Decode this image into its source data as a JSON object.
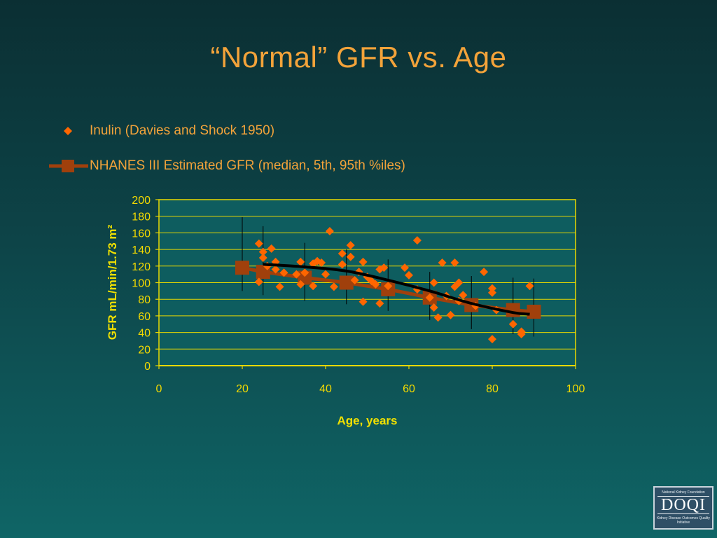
{
  "slide": {
    "title": "“Normal” GFR vs. Age"
  },
  "legend": {
    "inulin": "Inulin (Davies and Shock 1950)",
    "nhanes": "NHANES III Estimated GFR (median, 5th, 95th %iles)"
  },
  "logo": {
    "top_text": "National Kidney Foundation",
    "main_text": "DOQI",
    "bottom_text": "Kidney Disease Outcomes Quality Initiative"
  },
  "colors": {
    "title": "#f3a33a",
    "axis_text": "#f0e000",
    "plot_bg": "#0e5d5f",
    "grid": "#e8d800",
    "inulin": "#ff6600",
    "nhanes": "#a0400c",
    "trend": "#000000"
  },
  "chart_data": {
    "type": "scatter",
    "xlabel": "Age, years",
    "ylabel": "GFR mL/min/1.73 m²",
    "xlim": [
      0,
      100
    ],
    "ylim": [
      0,
      200
    ],
    "xticks": [
      0,
      20,
      40,
      60,
      80,
      100
    ],
    "yticks": [
      0,
      20,
      40,
      60,
      80,
      100,
      120,
      140,
      160,
      180,
      200
    ],
    "grid": "horizontal",
    "series": [
      {
        "name": "Inulin (Davies and Shock 1950)",
        "marker": "diamond",
        "points": [
          [
            24,
            147
          ],
          [
            24,
            101
          ],
          [
            25,
            137
          ],
          [
            25,
            130
          ],
          [
            26,
            120
          ],
          [
            27,
            141
          ],
          [
            28,
            125
          ],
          [
            28,
            116
          ],
          [
            29,
            95
          ],
          [
            30,
            112
          ],
          [
            33,
            110
          ],
          [
            34,
            125
          ],
          [
            34,
            98
          ],
          [
            35,
            112
          ],
          [
            37,
            96
          ],
          [
            37,
            123
          ],
          [
            38,
            126
          ],
          [
            39,
            124
          ],
          [
            40,
            110
          ],
          [
            41,
            162
          ],
          [
            42,
            95
          ],
          [
            44,
            135
          ],
          [
            44,
            122
          ],
          [
            46,
            145
          ],
          [
            46,
            131
          ],
          [
            47,
            103
          ],
          [
            48,
            113
          ],
          [
            49,
            125
          ],
          [
            49,
            77
          ],
          [
            50,
            107
          ],
          [
            51,
            102
          ],
          [
            52,
            98
          ],
          [
            53,
            116
          ],
          [
            53,
            75
          ],
          [
            54,
            118
          ],
          [
            55,
            96
          ],
          [
            59,
            118
          ],
          [
            60,
            109
          ],
          [
            62,
            151
          ],
          [
            62,
            92
          ],
          [
            65,
            82
          ],
          [
            66,
            100
          ],
          [
            66,
            70
          ],
          [
            67,
            58
          ],
          [
            68,
            124
          ],
          [
            69,
            84
          ],
          [
            70,
            61
          ],
          [
            71,
            124
          ],
          [
            71,
            95
          ],
          [
            72,
            100
          ],
          [
            72,
            78
          ],
          [
            73,
            85
          ],
          [
            76,
            72
          ],
          [
            78,
            113
          ],
          [
            80,
            93
          ],
          [
            80,
            88
          ],
          [
            80,
            32
          ],
          [
            81,
            67
          ],
          [
            85,
            50
          ],
          [
            87,
            41
          ],
          [
            87,
            38
          ],
          [
            89,
            96
          ]
        ]
      },
      {
        "name": "NHANES III Estimated GFR (median, 5th, 95th %iles)",
        "marker": "square",
        "points": [
          {
            "x": 20,
            "y": 118,
            "low": 90,
            "high": 179
          },
          {
            "x": 25,
            "y": 113,
            "low": 85,
            "high": 168
          },
          {
            "x": 35,
            "y": 106,
            "low": 78,
            "high": 148
          },
          {
            "x": 45,
            "y": 100,
            "low": 74,
            "high": 140
          },
          {
            "x": 55,
            "y": 92,
            "low": 66,
            "high": 128
          },
          {
            "x": 65,
            "y": 82,
            "low": 55,
            "high": 113
          },
          {
            "x": 75,
            "y": 73,
            "low": 44,
            "high": 108
          },
          {
            "x": 85,
            "y": 67,
            "low": 38,
            "high": 106
          },
          {
            "x": 90,
            "y": 65,
            "low": 35,
            "high": 105
          }
        ]
      },
      {
        "name": "",
        "marker": "none",
        "line": "smooth",
        "points": [
          [
            25,
            122
          ],
          [
            35,
            119
          ],
          [
            45,
            114
          ],
          [
            55,
            103
          ],
          [
            65,
            90
          ],
          [
            75,
            75
          ],
          [
            85,
            64
          ],
          [
            89,
            62
          ]
        ]
      }
    ]
  }
}
